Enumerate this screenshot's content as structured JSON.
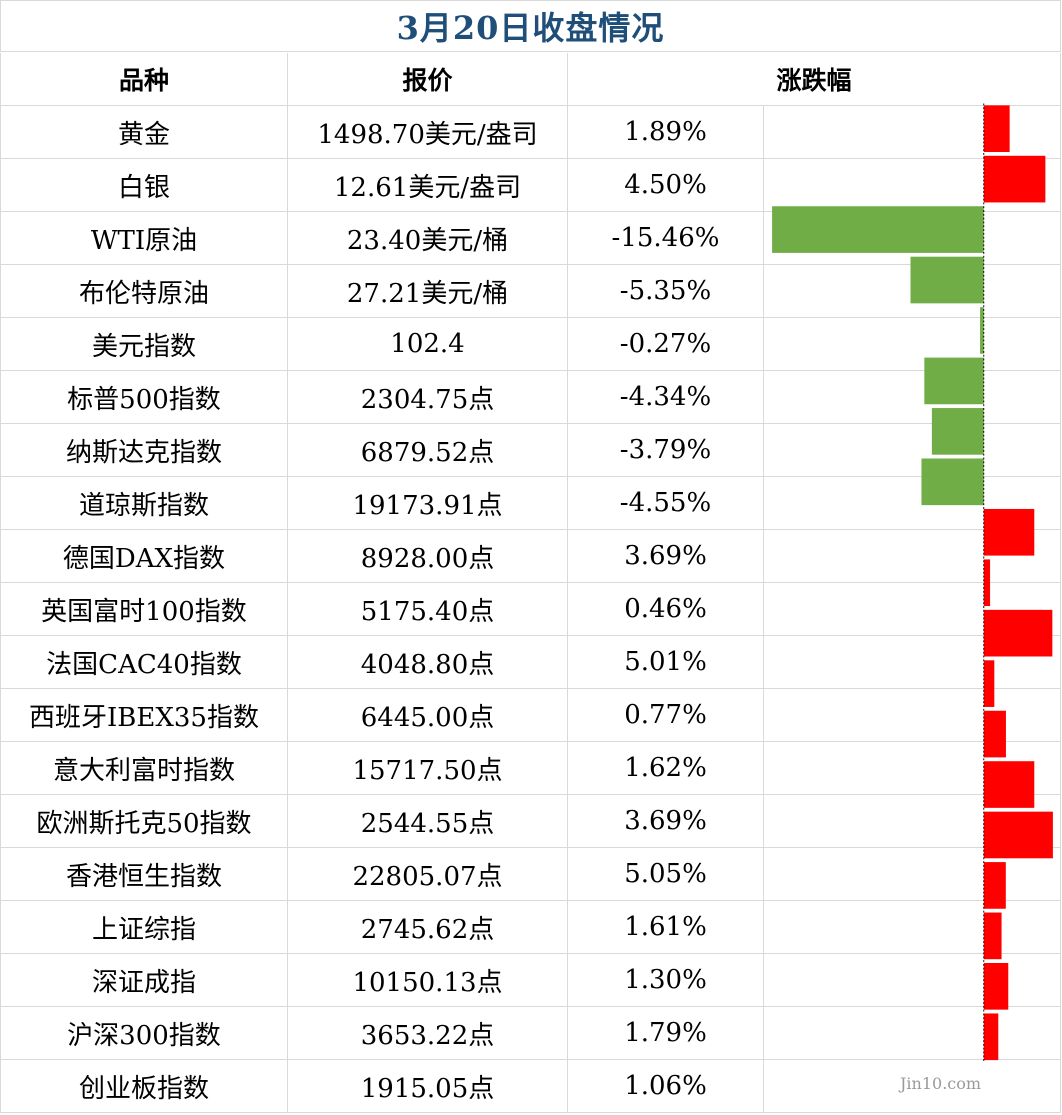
{
  "title": "3月20日收盘情况",
  "colors": {
    "title": "#1f4e79",
    "positive": "#ff0000",
    "negative": "#70ad47",
    "axis": "#000000"
  },
  "headers": {
    "name": "品种",
    "price": "报价",
    "change": "涨跌幅"
  },
  "watermark": "Jin10.com",
  "rows": [
    {
      "name": "黄金",
      "price": "1498.70美元/盎司",
      "change_label": "1.89%"
    },
    {
      "name": "白银",
      "price": "12.61美元/盎司",
      "change_label": "4.50%"
    },
    {
      "name": "WTI原油",
      "price": "23.40美元/桶",
      "change_label": "-15.46%"
    },
    {
      "name": "布伦特原油",
      "price": "27.21美元/桶",
      "change_label": "-5.35%"
    },
    {
      "name": "美元指数",
      "price": "102.4",
      "change_label": "-0.27%"
    },
    {
      "name": "标普500指数",
      "price": "2304.75点",
      "change_label": "-4.34%"
    },
    {
      "name": "纳斯达克指数",
      "price": "6879.52点",
      "change_label": "-3.79%"
    },
    {
      "name": "道琼斯指数",
      "price": "19173.91点",
      "change_label": "-4.55%"
    },
    {
      "name": "德国DAX指数",
      "price": "8928.00点",
      "change_label": "3.69%"
    },
    {
      "name": "英国富时100指数",
      "price": "5175.40点",
      "change_label": "0.46%"
    },
    {
      "name": "法国CAC40指数",
      "price": "4048.80点",
      "change_label": "5.01%"
    },
    {
      "name": "西班牙IBEX35指数",
      "price": "6445.00点",
      "change_label": "0.77%"
    },
    {
      "name": "意大利富时指数",
      "price": "15717.50点",
      "change_label": "1.62%"
    },
    {
      "name": "欧洲斯托克50指数",
      "price": "2544.55点",
      "change_label": "3.69%"
    },
    {
      "name": "香港恒生指数",
      "price": "22805.07点",
      "change_label": "5.05%"
    },
    {
      "name": "上证综指",
      "price": "2745.62点",
      "change_label": "1.61%"
    },
    {
      "name": "深证成指",
      "price": "10150.13点",
      "change_label": "1.30%"
    },
    {
      "name": "沪深300指数",
      "price": "3653.22点",
      "change_label": "1.79%"
    },
    {
      "name": "创业板指数",
      "price": "1915.05点",
      "change_label": "1.06%"
    }
  ],
  "chart_data": {
    "type": "bar",
    "orientation": "horizontal",
    "categories": [
      "黄金",
      "白银",
      "WTI原油",
      "布伦特原油",
      "美元指数",
      "标普500指数",
      "纳斯达克指数",
      "道琼斯指数",
      "德国DAX指数",
      "英国富时100指数",
      "法国CAC40指数",
      "西班牙IBEX35指数",
      "意大利富时指数",
      "欧洲斯托克50指数",
      "香港恒生指数",
      "上证综指",
      "深证成指",
      "沪深300指数",
      "创业板指数"
    ],
    "values": [
      1.89,
      4.5,
      -15.46,
      -5.35,
      -0.27,
      -4.34,
      -3.79,
      -4.55,
      3.69,
      0.46,
      5.01,
      0.77,
      1.62,
      3.69,
      5.05,
      1.61,
      1.3,
      1.79,
      1.06
    ],
    "unit": "%",
    "xlim": [
      -15.46,
      5.05
    ],
    "positive_color": "#ff0000",
    "negative_color": "#70ad47",
    "grid": false
  }
}
